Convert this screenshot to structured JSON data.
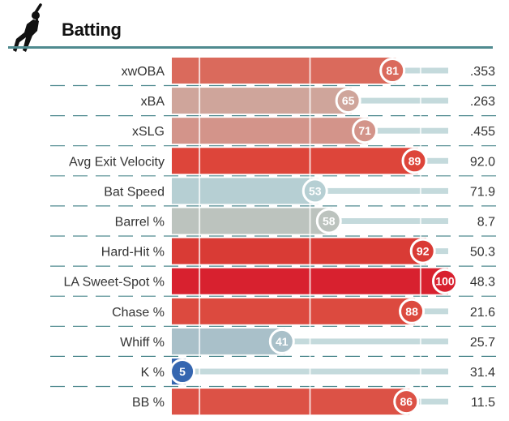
{
  "header": {
    "title": "Batting",
    "icon": "batter-silhouette-icon"
  },
  "chart_data": {
    "type": "bar",
    "orientation": "horizontal",
    "title": "Batting",
    "percentile_range": [
      0,
      100
    ],
    "reference_lines": [
      10,
      50,
      90
    ],
    "color_scale": {
      "low": "#3d6db5",
      "mid": "#b9c4c6",
      "high": "#d8212f"
    },
    "rows": [
      {
        "label": "xwOBA",
        "percentile": 81,
        "value": ".353",
        "color": "#da6a5c"
      },
      {
        "label": "xBA",
        "percentile": 65,
        "value": ".263",
        "color": "#cfa59b"
      },
      {
        "label": "xSLG",
        "percentile": 71,
        "value": ".455",
        "color": "#d3948a"
      },
      {
        "label": "Avg Exit Velocity",
        "percentile": 89,
        "value": "92.0",
        "color": "#dd453a"
      },
      {
        "label": "Bat Speed",
        "percentile": 53,
        "value": "71.9",
        "color": "#b6cfd3"
      },
      {
        "label": "Barrel %",
        "percentile": 58,
        "value": "8.7",
        "color": "#bcc3be"
      },
      {
        "label": "Hard-Hit %",
        "percentile": 92,
        "value": "50.3",
        "color": "#d93b35"
      },
      {
        "label": "LA Sweet-Spot %",
        "percentile": 100,
        "value": "48.3",
        "color": "#d8212f"
      },
      {
        "label": "Chase %",
        "percentile": 88,
        "value": "21.6",
        "color": "#dc4a3f"
      },
      {
        "label": "Whiff %",
        "percentile": 41,
        "value": "25.7",
        "color": "#a9c0c9"
      },
      {
        "label": "K %",
        "percentile": 5,
        "value": "31.4",
        "color": "#3566b0"
      },
      {
        "label": "BB %",
        "percentile": 86,
        "value": "11.5",
        "color": "#dc5246"
      }
    ]
  }
}
